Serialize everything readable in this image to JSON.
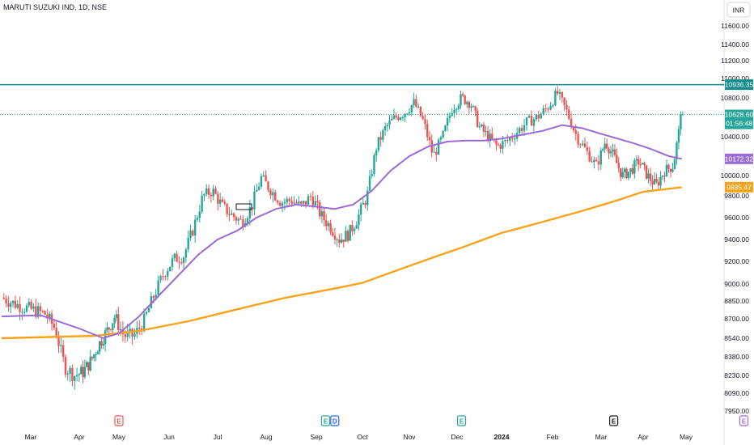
{
  "header": {
    "title": "MARUTI SUZUKI IND, 1D, NSE",
    "currency": "INR"
  },
  "colors": {
    "up": "#26a69a",
    "down": "#ef5350",
    "ma50": "#9c6ad6",
    "ma200": "#f7a21b",
    "resistance": "#138c8c",
    "last": "#26a69a",
    "axis_text": "#131722"
  },
  "chart_data": {
    "type": "candlestick",
    "timeframe": "1D",
    "symbol": "MARUTI SUZUKI IND",
    "exchange": "NSE",
    "y_ticks": [
      "11600.00",
      "11400.00",
      "11200.00",
      "11000.00",
      "10800.00",
      "10400.00",
      "10000.00",
      "9800.00",
      "9600.00",
      "9400.00",
      "9200.00",
      "9000.00",
      "8850.00",
      "8700.00",
      "8540.00",
      "8380.00",
      "8230.00",
      "8090.00",
      "7950.00"
    ],
    "x_ticks": [
      "Mar",
      "Apr",
      "May",
      "Jun",
      "Jul",
      "Aug",
      "Sep",
      "Oct",
      "Nov",
      "Dec",
      "2024",
      "Feb",
      "Mar",
      "Apr",
      "May"
    ],
    "events": [
      {
        "label": "E",
        "month_index": 2.6,
        "color": "#ef5350"
      },
      {
        "label": "E",
        "month_index": 6.8,
        "color": "#26a69a"
      },
      {
        "label": "D",
        "month_index": 7.0,
        "color": "#2962ff"
      },
      {
        "label": "E",
        "month_index": 9.7,
        "color": "#26a69a"
      },
      {
        "label": "E",
        "month_index": 12.9,
        "color": "#131722"
      },
      {
        "label": "E",
        "month_index": 15.9,
        "color": "#9c6ad6"
      }
    ],
    "price_levels": {
      "resistance": {
        "value": 10936.35,
        "label": "10936.35"
      },
      "last_price": {
        "value": 10628.6,
        "label": "10628.60",
        "countdown": "01:56:48"
      },
      "ma50": {
        "value": 10172.32,
        "label": "10172.32"
      },
      "ma200": {
        "value": 9885.47,
        "label": "9885.47"
      }
    },
    "price_path": [
      [
        0,
        8880
      ],
      [
        0.3,
        8820
      ],
      [
        0.6,
        8780
      ],
      [
        0.9,
        8740
      ],
      [
        1.1,
        8620
      ],
      [
        1.3,
        8300
      ],
      [
        1.5,
        8230
      ],
      [
        1.7,
        8260
      ],
      [
        1.9,
        8350
      ],
      [
        2.1,
        8490
      ],
      [
        2.3,
        8600
      ],
      [
        2.5,
        8720
      ],
      [
        2.7,
        8560
      ],
      [
        2.9,
        8560
      ],
      [
        3.1,
        8680
      ],
      [
        3.3,
        8900
      ],
      [
        3.5,
        9100
      ],
      [
        3.7,
        9220
      ],
      [
        3.9,
        9250
      ],
      [
        4.1,
        9500
      ],
      [
        4.3,
        9800
      ],
      [
        4.5,
        9850
      ],
      [
        4.7,
        9700
      ],
      [
        4.9,
        9620
      ],
      [
        5.1,
        9560
      ],
      [
        5.3,
        9700
      ],
      [
        5.5,
        9980
      ],
      [
        5.7,
        9850
      ],
      [
        5.9,
        9740
      ],
      [
        6.1,
        9760
      ],
      [
        6.3,
        9700
      ],
      [
        6.5,
        9800
      ],
      [
        6.7,
        9620
      ],
      [
        6.9,
        9520
      ],
      [
        7.1,
        9400
      ],
      [
        7.3,
        9450
      ],
      [
        7.5,
        9600
      ],
      [
        7.7,
        9800
      ],
      [
        7.9,
        10300
      ],
      [
        8.1,
        10500
      ],
      [
        8.3,
        10600
      ],
      [
        8.5,
        10650
      ],
      [
        8.7,
        10750
      ],
      [
        8.9,
        10550
      ],
      [
        9.1,
        10200
      ],
      [
        9.3,
        10400
      ],
      [
        9.5,
        10700
      ],
      [
        9.7,
        10800
      ],
      [
        9.9,
        10750
      ],
      [
        10.1,
        10500
      ],
      [
        10.3,
        10400
      ],
      [
        10.5,
        10300
      ],
      [
        10.7,
        10350
      ],
      [
        10.9,
        10450
      ],
      [
        11.1,
        10550
      ],
      [
        11.3,
        10600
      ],
      [
        11.5,
        10700
      ],
      [
        11.7,
        10850
      ],
      [
        11.9,
        10650
      ],
      [
        12.1,
        10400
      ],
      [
        12.3,
        10250
      ],
      [
        12.5,
        10100
      ],
      [
        12.7,
        10350
      ],
      [
        12.9,
        10200
      ],
      [
        13.1,
        10000
      ],
      [
        13.3,
        10050
      ],
      [
        13.5,
        10150
      ],
      [
        13.7,
        10000
      ],
      [
        13.9,
        9900
      ],
      [
        14.1,
        10050
      ],
      [
        14.3,
        10100
      ],
      [
        14.5,
        10628
      ]
    ],
    "ma50_path": [
      [
        0,
        8720
      ],
      [
        0.8,
        8730
      ],
      [
        1.6,
        8620
      ],
      [
        2.2,
        8540
      ],
      [
        2.6,
        8580
      ],
      [
        3.0,
        8720
      ],
      [
        3.4,
        8900
      ],
      [
        3.8,
        9080
      ],
      [
        4.2,
        9260
      ],
      [
        4.6,
        9400
      ],
      [
        5.0,
        9480
      ],
      [
        5.4,
        9600
      ],
      [
        5.8,
        9680
      ],
      [
        6.2,
        9720
      ],
      [
        6.6,
        9700
      ],
      [
        7.0,
        9680
      ],
      [
        7.4,
        9720
      ],
      [
        7.8,
        9850
      ],
      [
        8.2,
        10050
      ],
      [
        8.6,
        10200
      ],
      [
        9.0,
        10300
      ],
      [
        9.4,
        10350
      ],
      [
        9.8,
        10360
      ],
      [
        10.2,
        10360
      ],
      [
        10.6,
        10380
      ],
      [
        11.0,
        10420
      ],
      [
        11.4,
        10460
      ],
      [
        11.8,
        10520
      ],
      [
        12.2,
        10490
      ],
      [
        12.6,
        10430
      ],
      [
        13.0,
        10380
      ],
      [
        13.4,
        10330
      ],
      [
        13.8,
        10270
      ],
      [
        14.2,
        10200
      ],
      [
        14.5,
        10172
      ]
    ],
    "ma200_path": [
      [
        0,
        8540
      ],
      [
        1.0,
        8550
      ],
      [
        2.0,
        8560
      ],
      [
        3.0,
        8600
      ],
      [
        4.0,
        8680
      ],
      [
        5.0,
        8780
      ],
      [
        6.0,
        8880
      ],
      [
        7.0,
        8960
      ],
      [
        7.6,
        9010
      ],
      [
        8.2,
        9100
      ],
      [
        9.0,
        9220
      ],
      [
        9.8,
        9340
      ],
      [
        10.6,
        9460
      ],
      [
        11.4,
        9560
      ],
      [
        12.2,
        9660
      ],
      [
        13.0,
        9760
      ],
      [
        13.6,
        9840
      ],
      [
        14.2,
        9870
      ],
      [
        14.5,
        9885
      ]
    ]
  }
}
